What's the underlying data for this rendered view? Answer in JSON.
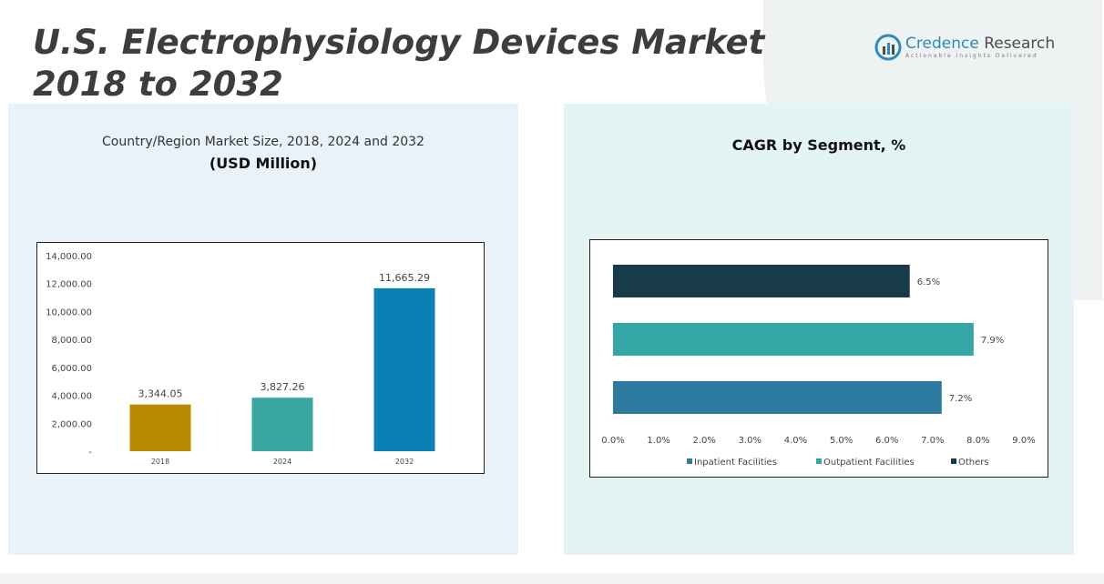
{
  "page": {
    "title": "U.S. Electrophysiology Devices Market 2018 to 2032"
  },
  "logo": {
    "name_part1": "Credence",
    "name_part2": "Research",
    "tagline": "Actionable Insights Delivered",
    "icon": "credence-research-logo-icon"
  },
  "colors": {
    "accent_title": "#3d3d3d",
    "bar_2018": "#b88a00",
    "bar_2024": "#3aa6a0",
    "bar_2032": "#0b7fb3",
    "inpatient": "#2e7a9e",
    "outpatient": "#35a6a6",
    "others": "#173b4b"
  },
  "chart_data": [
    {
      "type": "bar",
      "title": "Country/Region Market Size, 2018, 2024 and 2032",
      "subtitle": "(USD Million)",
      "categories": [
        "2018",
        "2024",
        "2032"
      ],
      "values": [
        3344.05,
        3827.26,
        11665.29
      ],
      "value_labels": [
        "3,344.05",
        "3,827.26",
        "11,665.29"
      ],
      "ylim": [
        0,
        14000
      ],
      "yticks": [
        0,
        2000,
        4000,
        6000,
        8000,
        10000,
        12000,
        14000
      ],
      "ytick_labels": [
        "-",
        "2,000.00",
        "4,000.00",
        "6,000.00",
        "8,000.00",
        "10,000.00",
        "12,000.00",
        "14,000.00"
      ],
      "grid": false,
      "legend": false
    },
    {
      "type": "bar",
      "orientation": "horizontal",
      "title": "CAGR by Segment, %",
      "series": [
        {
          "name": "Inpatient Facilities",
          "value": 7.2,
          "label": "7.2%"
        },
        {
          "name": "Outpatient Facilities",
          "value": 7.9,
          "label": "7.9%"
        },
        {
          "name": "Others",
          "value": 6.5,
          "label": "6.5%"
        }
      ],
      "xlim": [
        0,
        9
      ],
      "xticks": [
        0,
        1,
        2,
        3,
        4,
        5,
        6,
        7,
        8,
        9
      ],
      "xtick_labels": [
        "0.0%",
        "1.0%",
        "2.0%",
        "3.0%",
        "4.0%",
        "5.0%",
        "6.0%",
        "7.0%",
        "8.0%",
        "9.0%"
      ],
      "grid": false,
      "legend": "bottom"
    }
  ]
}
